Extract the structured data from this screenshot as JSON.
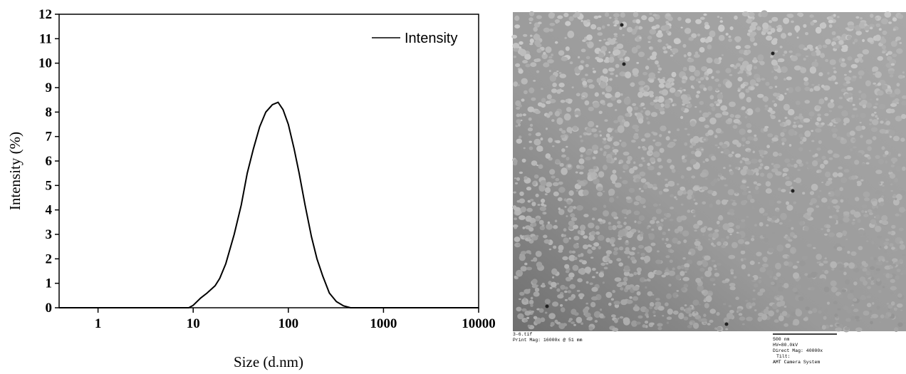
{
  "chart_data": {
    "type": "line",
    "x_label": "Size (d.nm)",
    "y_label": "Intensity (%)",
    "log_x": true,
    "xlim": [
      0.39,
      10000
    ],
    "xticks": [
      1,
      10,
      100,
      1000,
      10000
    ],
    "ylim": [
      0,
      12
    ],
    "yticks": [
      0,
      1,
      2,
      3,
      4,
      5,
      6,
      7,
      8,
      9,
      10,
      11,
      12
    ],
    "legend": "upper right",
    "x": [
      0.39,
      9,
      10,
      12,
      14,
      17,
      19,
      22,
      27,
      32,
      37,
      43,
      50,
      58,
      68,
      78,
      88,
      100,
      115,
      130,
      150,
      175,
      200,
      230,
      270,
      320,
      380,
      450,
      10000
    ],
    "series": [
      {
        "name": "Intensity",
        "color": "#000000",
        "values": [
          0,
          0,
          0.1,
          0.4,
          0.6,
          0.9,
          1.2,
          1.8,
          3,
          4.2,
          5.5,
          6.5,
          7.4,
          8.0,
          8.3,
          8.4,
          8.1,
          7.5,
          6.5,
          5.5,
          4.2,
          2.9,
          2.0,
          1.3,
          0.6,
          0.25,
          0.08,
          0,
          0
        ]
      }
    ]
  },
  "tem_image": {
    "file": "3-6.tif",
    "print_mag": "Print Mag: 16000x @ 51 mm",
    "scale": "500 nm",
    "hv": "HV=80.0kV",
    "direct_mag": "Direct Mag: 40000x",
    "tilt": "Tilt:",
    "camera": "AMT Camera System"
  }
}
